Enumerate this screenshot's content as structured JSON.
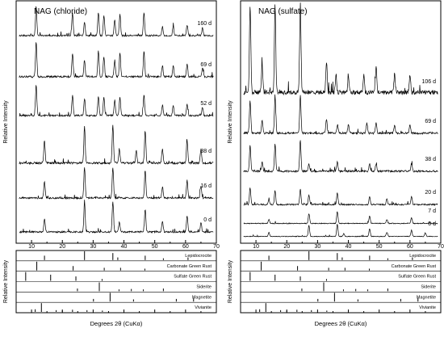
{
  "figure": {
    "shared_xlabel": "Degrees 2θ (CuKα)",
    "ylabel": "Relative Intensity"
  },
  "chart_data": [
    {
      "type": "line",
      "title": "NAG (chloride)",
      "xlabel": "Degrees 2θ (CuKα)",
      "ylabel": "Relative Intensity",
      "xlim": [
        5,
        70
      ],
      "xticks": [
        10,
        20,
        30,
        40,
        50,
        60,
        70
      ],
      "grid": false,
      "series": [
        {
          "name": "160 d",
          "peaks": [
            [
              11.5,
              0.95
            ],
            [
              23.3,
              0.75
            ],
            [
              27.2,
              0.45
            ],
            [
              31.7,
              0.75
            ],
            [
              33.5,
              0.65
            ],
            [
              37.0,
              0.5
            ],
            [
              38.7,
              0.7
            ],
            [
              46.5,
              0.75
            ],
            [
              52.5,
              0.3
            ],
            [
              56.0,
              0.3
            ],
            [
              60.5,
              0.35
            ],
            [
              65.5,
              0.25
            ]
          ]
        },
        {
          "name": "69 d",
          "peaks": [
            [
              11.5,
              0.95
            ],
            [
              23.3,
              0.65
            ],
            [
              27.2,
              0.45
            ],
            [
              31.7,
              0.7
            ],
            [
              33.5,
              0.55
            ],
            [
              37.0,
              0.45
            ],
            [
              38.7,
              0.65
            ],
            [
              46.5,
              0.7
            ],
            [
              52.5,
              0.3
            ],
            [
              56.0,
              0.3
            ],
            [
              60.5,
              0.35
            ],
            [
              65.5,
              0.25
            ]
          ]
        },
        {
          "name": "52 d",
          "peaks": [
            [
              11.5,
              0.9
            ],
            [
              23.3,
              0.6
            ],
            [
              27.2,
              0.5
            ],
            [
              31.7,
              0.55
            ],
            [
              33.5,
              0.55
            ],
            [
              37.0,
              0.45
            ],
            [
              38.7,
              0.55
            ],
            [
              46.5,
              0.6
            ],
            [
              52.5,
              0.3
            ],
            [
              56.0,
              0.3
            ],
            [
              60.5,
              0.35
            ],
            [
              65.5,
              0.25
            ]
          ]
        },
        {
          "name": "38 d",
          "peaks": [
            [
              14.2,
              0.55
            ],
            [
              27.2,
              0.9
            ],
            [
              36.4,
              0.95
            ],
            [
              38.5,
              0.35
            ],
            [
              44.0,
              0.3
            ],
            [
              46.9,
              0.8
            ],
            [
              52.5,
              0.35
            ],
            [
              60.5,
              0.55
            ],
            [
              65.0,
              0.35
            ]
          ]
        },
        {
          "name": "16 d",
          "peaks": [
            [
              14.2,
              0.5
            ],
            [
              27.2,
              0.95
            ],
            [
              36.4,
              0.95
            ],
            [
              46.9,
              0.85
            ],
            [
              52.5,
              0.35
            ],
            [
              60.5,
              0.55
            ],
            [
              65.0,
              0.35
            ]
          ]
        },
        {
          "name": "0 d",
          "peaks": [
            [
              14.2,
              0.4
            ],
            [
              27.2,
              0.9
            ],
            [
              36.4,
              0.95
            ],
            [
              38.5,
              0.3
            ],
            [
              46.9,
              0.7
            ],
            [
              52.5,
              0.35
            ],
            [
              60.5,
              0.5
            ],
            [
              65.0,
              0.3
            ]
          ]
        }
      ],
      "reference_patterns": [
        {
          "name": "Lepidocrocite",
          "peaks": [
            [
              14.2,
              0.5
            ],
            [
              27.2,
              1.0
            ],
            [
              36.4,
              0.8
            ],
            [
              38.0,
              0.3
            ],
            [
              46.9,
              0.5
            ],
            [
              52.8,
              0.2
            ],
            [
              60.8,
              0.3
            ]
          ]
        },
        {
          "name": "Carbonate Green Rust",
          "peaks": [
            [
              11.7,
              1.0
            ],
            [
              23.5,
              0.5
            ],
            [
              33.6,
              0.3
            ],
            [
              38.9,
              0.3
            ],
            [
              46.8,
              0.2
            ]
          ]
        },
        {
          "name": "Sulfate Green Rust",
          "peaks": [
            [
              8.1,
              1.0
            ],
            [
              16.2,
              0.7
            ],
            [
              24.4,
              0.5
            ],
            [
              32.9,
              0.2
            ]
          ]
        },
        {
          "name": "Siderite",
          "peaks": [
            [
              24.9,
              0.3
            ],
            [
              32.0,
              1.0
            ],
            [
              38.4,
              0.2
            ],
            [
              42.4,
              0.25
            ],
            [
              46.3,
              0.2
            ],
            [
              52.8,
              0.3
            ]
          ]
        },
        {
          "name": "Magnetite",
          "peaks": [
            [
              30.1,
              0.3
            ],
            [
              35.5,
              1.0
            ],
            [
              43.1,
              0.25
            ],
            [
              57.0,
              0.3
            ],
            [
              62.6,
              0.4
            ]
          ]
        },
        {
          "name": "Vivianite",
          "peaks": [
            [
              11.2,
              0.3
            ],
            [
              13.2,
              1.0
            ],
            [
              18.0,
              0.2
            ],
            [
              20.0,
              0.15
            ],
            [
              23.3,
              0.25
            ],
            [
              28.0,
              0.2
            ],
            [
              33.0,
              0.15
            ]
          ]
        }
      ]
    },
    {
      "type": "line",
      "title": "NAG (sulfate)",
      "xlabel": "Degrees 2θ (CuKα)",
      "ylabel": "Relative Intensity",
      "xlim": [
        5,
        70
      ],
      "xticks": [
        10,
        20,
        30,
        40,
        50,
        60,
        70
      ],
      "grid": false,
      "series": [
        {
          "name": "106 d",
          "peaks": [
            [
              8.1,
              1.0
            ],
            [
              12.0,
              0.3
            ],
            [
              16.2,
              1.0
            ],
            [
              24.4,
              1.0
            ],
            [
              32.9,
              0.35
            ],
            [
              36.0,
              0.2
            ],
            [
              40.0,
              0.2
            ],
            [
              45.0,
              0.2
            ],
            [
              49.0,
              0.3
            ],
            [
              55.0,
              0.2
            ],
            [
              60.0,
              0.2
            ]
          ]
        },
        {
          "name": "69 d",
          "peaks": [
            [
              8.1,
              0.8
            ],
            [
              12.0,
              0.3
            ],
            [
              16.2,
              0.9
            ],
            [
              24.4,
              0.95
            ],
            [
              32.9,
              0.35
            ],
            [
              36.5,
              0.2
            ],
            [
              40.0,
              0.2
            ],
            [
              46.0,
              0.25
            ],
            [
              49.0,
              0.25
            ],
            [
              55.0,
              0.2
            ],
            [
              60.0,
              0.2
            ]
          ]
        },
        {
          "name": "38 d",
          "peaks": [
            [
              8.1,
              0.7
            ],
            [
              12.0,
              0.25
            ],
            [
              16.2,
              0.75
            ],
            [
              24.4,
              0.85
            ],
            [
              27.2,
              0.2
            ],
            [
              36.4,
              0.25
            ],
            [
              46.9,
              0.2
            ],
            [
              49.0,
              0.2
            ],
            [
              60.5,
              0.2
            ]
          ]
        },
        {
          "name": "20 d",
          "peaks": [
            [
              8.1,
              0.6
            ],
            [
              14.2,
              0.2
            ],
            [
              16.2,
              0.5
            ],
            [
              24.4,
              0.55
            ],
            [
              27.2,
              0.35
            ],
            [
              36.4,
              0.45
            ],
            [
              46.9,
              0.3
            ],
            [
              52.5,
              0.2
            ],
            [
              60.5,
              0.3
            ]
          ]
        },
        {
          "name": "7 d",
          "peaks": [
            [
              14.2,
              0.25
            ],
            [
              27.2,
              0.6
            ],
            [
              36.4,
              0.75
            ],
            [
              46.9,
              0.45
            ],
            [
              52.5,
              0.25
            ],
            [
              60.5,
              0.35
            ]
          ]
        },
        {
          "name": "0 d",
          "peaks": [
            [
              14.2,
              0.3
            ],
            [
              27.2,
              0.8
            ],
            [
              36.4,
              0.9
            ],
            [
              38.5,
              0.2
            ],
            [
              46.9,
              0.55
            ],
            [
              52.5,
              0.3
            ],
            [
              60.5,
              0.45
            ],
            [
              65.0,
              0.25
            ]
          ]
        }
      ],
      "reference_patterns": [
        {
          "name": "Lepidocrocite",
          "peaks": [
            [
              14.2,
              0.5
            ],
            [
              27.2,
              1.0
            ],
            [
              36.4,
              0.8
            ],
            [
              38.0,
              0.3
            ],
            [
              46.9,
              0.5
            ],
            [
              52.8,
              0.2
            ],
            [
              60.8,
              0.3
            ]
          ]
        },
        {
          "name": "Carbonate Green Rust",
          "peaks": [
            [
              11.7,
              1.0
            ],
            [
              23.5,
              0.5
            ],
            [
              33.6,
              0.3
            ],
            [
              38.9,
              0.3
            ],
            [
              46.8,
              0.2
            ]
          ]
        },
        {
          "name": "Sulfate Green Rust",
          "peaks": [
            [
              8.1,
              1.0
            ],
            [
              16.2,
              0.7
            ],
            [
              24.4,
              0.5
            ],
            [
              32.9,
              0.2
            ]
          ]
        },
        {
          "name": "Siderite",
          "peaks": [
            [
              24.9,
              0.3
            ],
            [
              32.0,
              1.0
            ],
            [
              38.4,
              0.2
            ],
            [
              42.4,
              0.25
            ],
            [
              46.3,
              0.2
            ],
            [
              52.8,
              0.3
            ]
          ]
        },
        {
          "name": "Magnetite",
          "peaks": [
            [
              30.1,
              0.3
            ],
            [
              35.5,
              1.0
            ],
            [
              43.1,
              0.25
            ],
            [
              57.0,
              0.3
            ],
            [
              62.6,
              0.4
            ]
          ]
        },
        {
          "name": "Vivianite",
          "peaks": [
            [
              11.2,
              0.3
            ],
            [
              13.2,
              1.0
            ],
            [
              18.0,
              0.2
            ],
            [
              20.0,
              0.15
            ],
            [
              23.3,
              0.25
            ],
            [
              28.0,
              0.2
            ],
            [
              33.0,
              0.15
            ]
          ]
        }
      ]
    }
  ]
}
